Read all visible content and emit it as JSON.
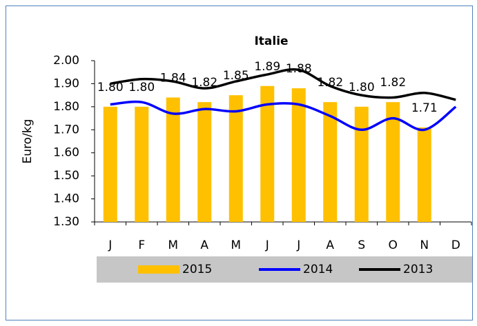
{
  "chart_data": {
    "type": "bar_line",
    "title": "Italie",
    "y_label": "Euro/kg",
    "categories": [
      "J",
      "F",
      "M",
      "A",
      "M",
      "J",
      "J",
      "A",
      "S",
      "O",
      "N",
      "D"
    ],
    "series": [
      {
        "name": "2015",
        "type": "bar",
        "color": "#ffc000",
        "values": [
          1.8,
          1.8,
          1.84,
          1.82,
          1.85,
          1.89,
          1.88,
          1.82,
          1.8,
          1.82,
          1.71,
          null
        ],
        "value_labels": [
          "1.80",
          "1.80",
          "1.84",
          "1.82",
          "1.85",
          "1.89",
          "1.88",
          "1.82",
          "1.80",
          "1.82",
          "1.71",
          null
        ]
      },
      {
        "name": "2014",
        "type": "line",
        "color": "#0000ff",
        "values": [
          1.81,
          1.82,
          1.77,
          1.79,
          1.78,
          1.81,
          1.81,
          1.76,
          1.7,
          1.75,
          1.7,
          1.8
        ]
      },
      {
        "name": "2013",
        "type": "line",
        "color": "#000000",
        "values": [
          1.9,
          1.92,
          1.91,
          1.88,
          1.91,
          1.94,
          1.96,
          1.89,
          1.85,
          1.84,
          1.86,
          1.83
        ]
      }
    ],
    "ylim": [
      1.3,
      2.0
    ],
    "yticks": [
      {
        "value": 1.3,
        "label": "1.30"
      },
      {
        "value": 1.4,
        "label": "1.40"
      },
      {
        "value": 1.5,
        "label": "1.50"
      },
      {
        "value": 1.6,
        "label": "1.60"
      },
      {
        "value": 1.7,
        "label": "1.70"
      },
      {
        "value": 1.8,
        "label": "1.80"
      },
      {
        "value": 1.9,
        "label": "1.90"
      },
      {
        "value": 2.0,
        "label": "2.00"
      }
    ],
    "grid": false,
    "legend": "bottom"
  }
}
